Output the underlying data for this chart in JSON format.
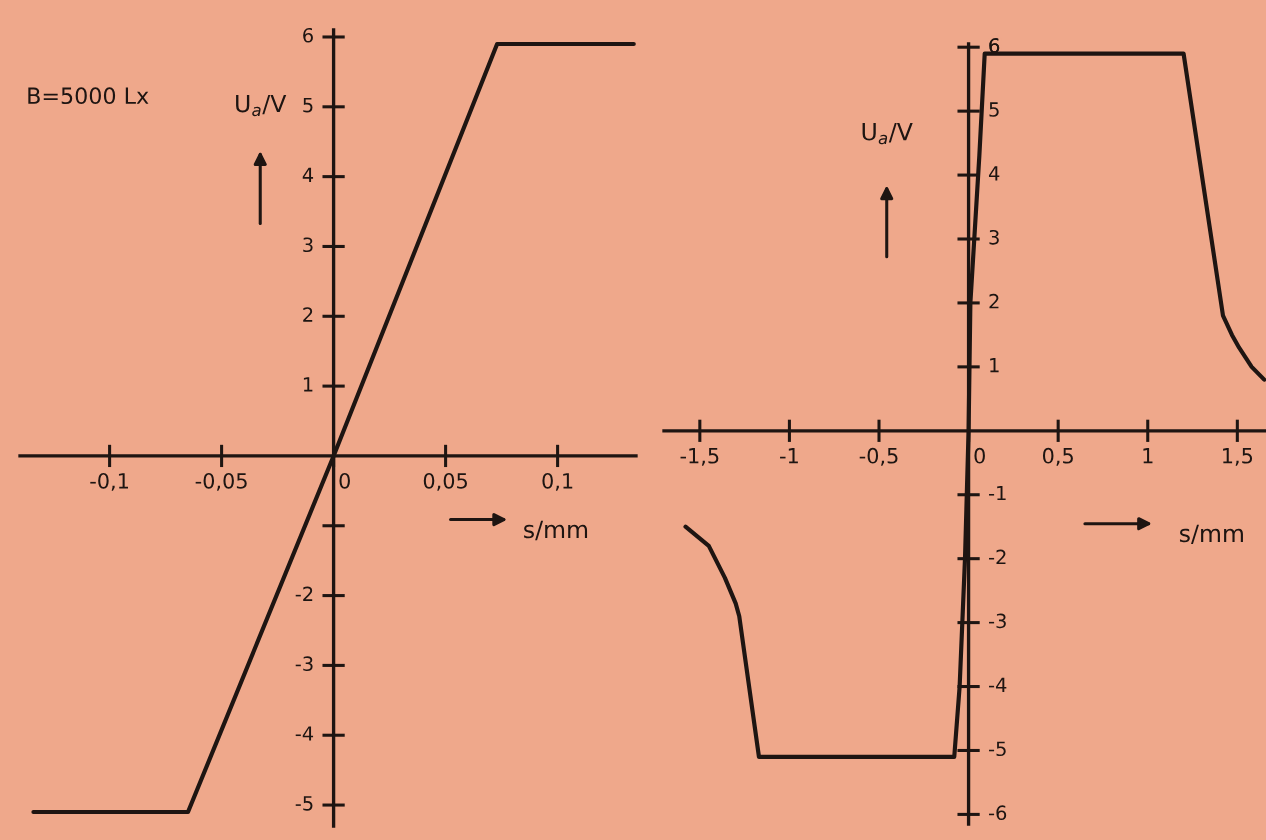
{
  "chart_data": [
    {
      "type": "line",
      "xlabel": "s/mm",
      "ylabel": "U$_{a}$/V",
      "annotations": [
        "B=5000 Lx"
      ],
      "xlim": [
        -0.14,
        0.135
      ],
      "ylim": [
        -5.3,
        6.1
      ],
      "xticks": [
        {
          "value": -0.1,
          "label": "-0,1"
        },
        {
          "value": -0.05,
          "label": "-0,05"
        },
        0,
        {
          "value": 0.05,
          "label": "0,05"
        },
        {
          "value": 0.1,
          "label": "0,1"
        }
      ],
      "yticks": [
        -5,
        -4,
        -3,
        -2,
        {
          "value": -1,
          "label": null
        },
        1,
        2,
        3,
        4,
        5,
        6
      ],
      "series": [
        {
          "color": "#1e1512",
          "x": [
            -0.134,
            -0.065,
            0,
            0.073,
            0.134
          ],
          "values": [
            -5.1,
            -5.1,
            0,
            5.9,
            5.9
          ]
        }
      ]
    },
    {
      "type": "line",
      "xlabel": "s/mm",
      "ylabel": "U$_{a}$/V",
      "xlim": [
        -1.7,
        1.66
      ],
      "ylim": [
        -6.15,
        6.05
      ],
      "xticks": [
        {
          "value": -1.5,
          "label": "-1,5"
        },
        -1,
        {
          "value": -0.5,
          "label": "-0,5"
        },
        0,
        {
          "value": 0.5,
          "label": "0,5"
        },
        1,
        {
          "value": 1.5,
          "label": "1,5"
        }
      ],
      "yticks": [
        -6,
        -5,
        -4,
        -3,
        -2,
        -1,
        1,
        2,
        3,
        4,
        5,
        6
      ],
      "series": [
        {
          "color": "#1e1512",
          "x": [
            -1.58,
            -1.45,
            -1.36,
            -1.3,
            -1.28,
            -1.17,
            -0.08,
            -0.05,
            -0.02,
            0,
            0.01,
            0.06,
            0.09,
            1.2,
            1.42,
            1.47,
            1.51,
            1.58,
            1.65
          ],
          "values": [
            -1.5,
            -1.8,
            -2.3,
            -2.7,
            -2.9,
            -5.1,
            -5.1,
            -4,
            -2,
            0,
            2,
            4.3,
            5.9,
            5.9,
            1.8,
            1.5,
            1.3,
            1.0,
            0.8
          ]
        }
      ]
    }
  ]
}
